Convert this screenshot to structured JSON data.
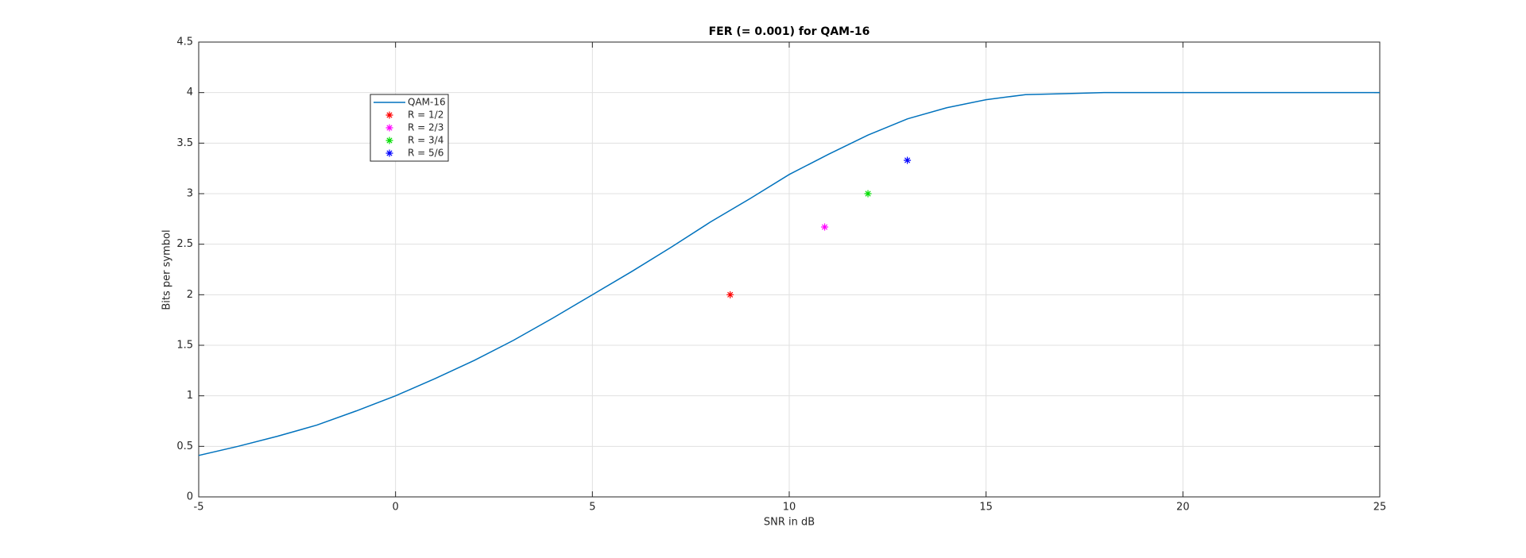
{
  "chart_data": {
    "type": "line",
    "title": "FER (= 0.001) for QAM-16",
    "x_label": "SNR in dB",
    "y_label": "Bits per symbol",
    "xlim": [
      -5,
      25
    ],
    "xticks": [
      -5,
      0,
      5,
      10,
      15,
      20,
      25
    ],
    "ylim": [
      0,
      4.5
    ],
    "yticks": [
      0,
      0.5,
      1,
      1.5,
      2,
      2.5,
      3,
      3.5,
      4,
      4.5
    ],
    "grid": true,
    "legend": "upper left",
    "series": [
      {
        "name": "QAM-16",
        "color": "#0072bd",
        "style": "line",
        "x": [
          -5,
          -4,
          -3,
          -2,
          -1,
          0,
          1,
          2,
          3,
          4,
          5,
          6,
          7,
          8,
          9,
          10,
          11,
          12,
          13,
          14,
          15,
          16,
          17,
          18,
          19,
          20,
          21,
          22,
          23,
          24,
          25
        ],
        "values": [
          0.41,
          0.5,
          0.6,
          0.71,
          0.85,
          1.0,
          1.17,
          1.35,
          1.55,
          1.77,
          2.0,
          2.23,
          2.47,
          2.72,
          2.95,
          3.19,
          3.39,
          3.58,
          3.74,
          3.85,
          3.93,
          3.98,
          3.99,
          4.0,
          4.0,
          4.0,
          4.0,
          4.0,
          4.0,
          4.0,
          4.0
        ]
      },
      {
        "name": "R = 1/2",
        "color": "#ff0000",
        "style": "markers",
        "x": [
          8.5
        ],
        "values": [
          2
        ]
      },
      {
        "name": "R = 2/3",
        "color": "#ff00ff",
        "style": "markers",
        "x": [
          10.9
        ],
        "values": [
          2.67
        ]
      },
      {
        "name": "R = 3/4",
        "color": "#00dd00",
        "style": "markers",
        "x": [
          12
        ],
        "values": [
          3
        ]
      },
      {
        "name": "R = 5/6",
        "color": "#0000ff",
        "style": "markers",
        "x": [
          13
        ],
        "values": [
          3.33
        ]
      }
    ]
  }
}
